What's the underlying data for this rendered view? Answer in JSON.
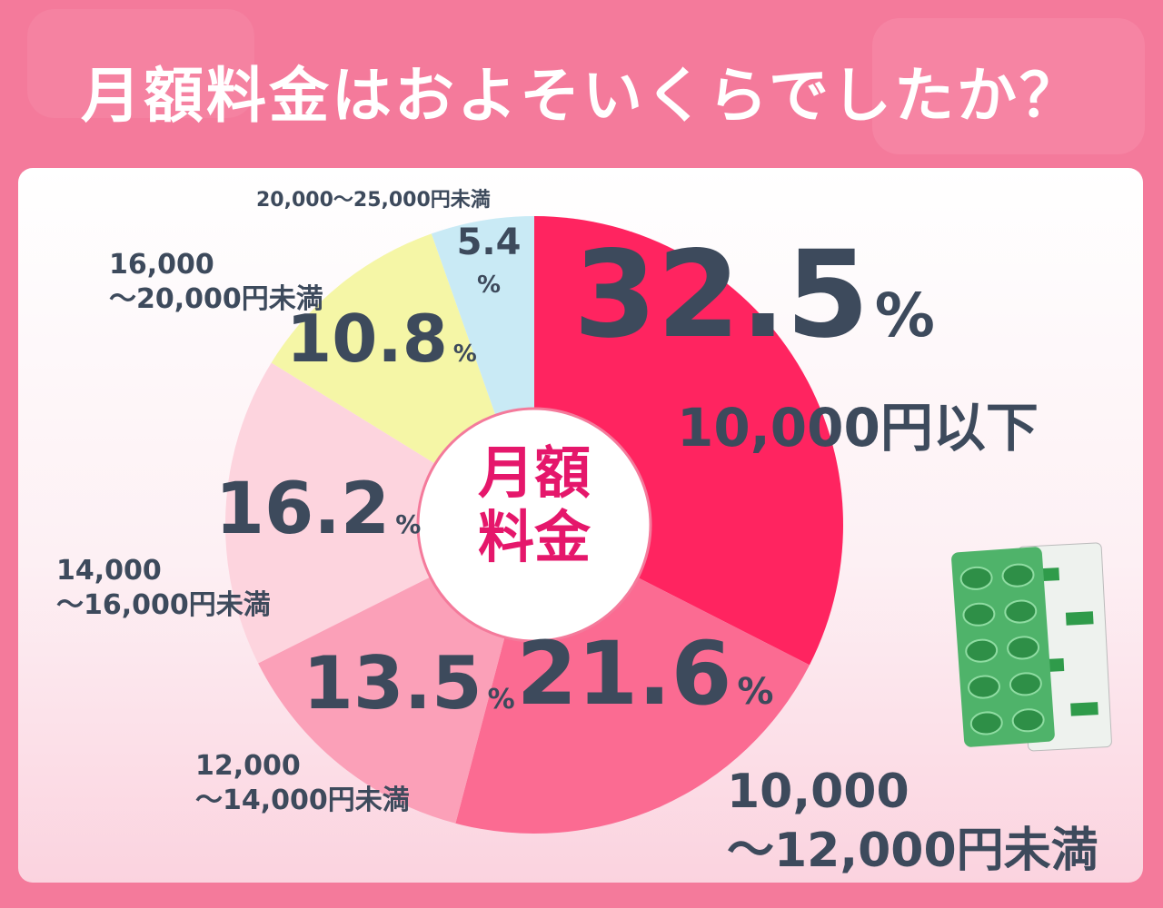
{
  "title": "月額料金はおよそいくらでしたか？",
  "chart_data": {
    "type": "pie",
    "center_label": "月額\n料金",
    "categories": [
      "10,000円以下",
      "10,000\n〜12,000円未満",
      "12,000\n〜14,000円未満",
      "14,000\n〜16,000円未満",
      "16,000\n〜20,000円未満",
      "20,000〜25,000円未満"
    ],
    "values": [
      32.5,
      21.6,
      13.5,
      16.2,
      10.8,
      5.4
    ],
    "value_labels": [
      "32.5%",
      "21.6%",
      "13.5%",
      "16.2%",
      "10.8%",
      "5.4%"
    ],
    "colors": [
      "#ff2460",
      "#fb6b92",
      "#fba0b8",
      "#fdd4de",
      "#f5f6a6",
      "#c9eaf5"
    ]
  }
}
